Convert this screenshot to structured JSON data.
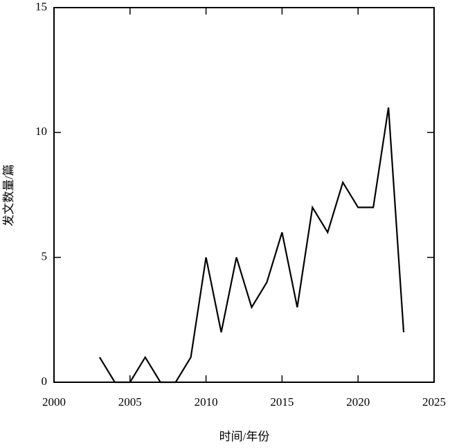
{
  "chart_data": {
    "type": "line",
    "x_label": "时间/年份",
    "y_label": "发文数量/篇",
    "x": [
      2003,
      2004,
      2005,
      2006,
      2007,
      2008,
      2009,
      2010,
      2011,
      2012,
      2013,
      2014,
      2015,
      2016,
      2017,
      2018,
      2019,
      2020,
      2021,
      2022,
      2023
    ],
    "series": [
      {
        "name": "发文数量",
        "color": "#000000",
        "values": [
          1,
          0,
          0,
          1,
          0,
          0,
          1,
          5,
          2,
          5,
          3,
          4,
          6,
          3,
          7,
          6,
          8,
          7,
          7,
          11,
          2
        ]
      }
    ],
    "xlim": [
      2000,
      2025
    ],
    "xticks": [
      2000,
      2005,
      2010,
      2015,
      2020,
      2025
    ],
    "ylim": [
      0,
      15
    ],
    "yticks": [
      0,
      5,
      10,
      15
    ]
  }
}
